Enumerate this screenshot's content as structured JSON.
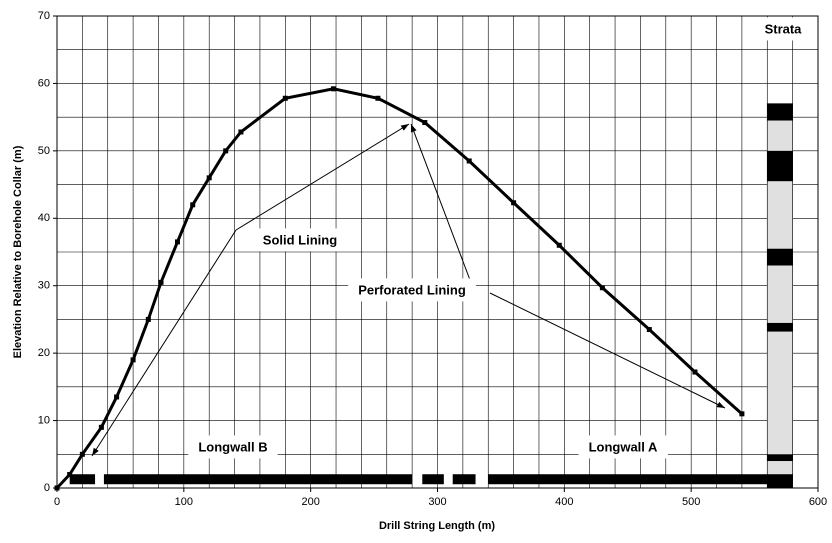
{
  "chart_data": {
    "type": "line",
    "x_label": "Drill String Length (m)",
    "y_label": "Elevation Relative to Borehole Collar (m)",
    "xlim": [
      0,
      600
    ],
    "ylim": [
      0,
      70
    ],
    "xticks": [
      0,
      100,
      200,
      300,
      400,
      500,
      600
    ],
    "yticks": [
      0,
      10,
      20,
      30,
      40,
      50,
      60,
      70
    ],
    "xgrid": [
      0,
      20,
      40,
      60,
      80,
      100,
      120,
      140,
      160,
      180,
      200,
      220,
      240,
      260,
      280,
      300,
      320,
      340,
      360,
      380,
      400,
      420,
      440,
      460,
      480,
      500,
      520,
      540,
      560,
      580,
      600
    ],
    "ygrid": [
      0,
      5,
      10,
      15,
      20,
      25,
      30,
      35,
      40,
      45,
      50,
      55,
      60,
      65,
      70
    ],
    "grid": true,
    "series": [
      {
        "color": "#000000",
        "x": [
          0,
          10,
          20,
          35,
          47,
          60,
          72,
          82,
          95,
          107,
          120,
          133,
          145,
          180,
          218,
          253,
          290,
          325,
          360,
          396,
          430,
          467,
          503,
          540
        ],
        "values": [
          0,
          2,
          5,
          9,
          13.5,
          19,
          25,
          30.5,
          36.5,
          42,
          46,
          50,
          52.8,
          57.8,
          59.2,
          57.8,
          54.2,
          48.5,
          42.3,
          36,
          29.7,
          23.5,
          17.2,
          11
        ]
      }
    ],
    "longwall_segments": [
      [
        10,
        30
      ],
      [
        37,
        280
      ],
      [
        288,
        305
      ],
      [
        312,
        330
      ],
      [
        340,
        580
      ]
    ],
    "longwall_level": 1.3,
    "strata": {
      "x": [
        560,
        580
      ],
      "layers": [
        {
          "from": 0,
          "to": 2,
          "color": "#000000"
        },
        {
          "from": 2,
          "to": 4,
          "color": "#e0e0e0"
        },
        {
          "from": 4,
          "to": 5,
          "color": "#000000"
        },
        {
          "from": 5,
          "to": 23.2,
          "color": "#e0e0e0"
        },
        {
          "from": 23.2,
          "to": 24.5,
          "color": "#000000"
        },
        {
          "from": 24.5,
          "to": 33,
          "color": "#e0e0e0"
        },
        {
          "from": 33,
          "to": 35.5,
          "color": "#000000"
        },
        {
          "from": 35.5,
          "to": 45.5,
          "color": "#e0e0e0"
        },
        {
          "from": 45.5,
          "to": 50,
          "color": "#000000"
        },
        {
          "from": 50,
          "to": 54.5,
          "color": "#e0e0e0"
        },
        {
          "from": 54.5,
          "to": 57,
          "color": "#000000"
        }
      ]
    },
    "annotations": [
      "Strata",
      "Solid Lining",
      "Perforated Lining",
      "Longwall B",
      "Longwall A"
    ]
  }
}
